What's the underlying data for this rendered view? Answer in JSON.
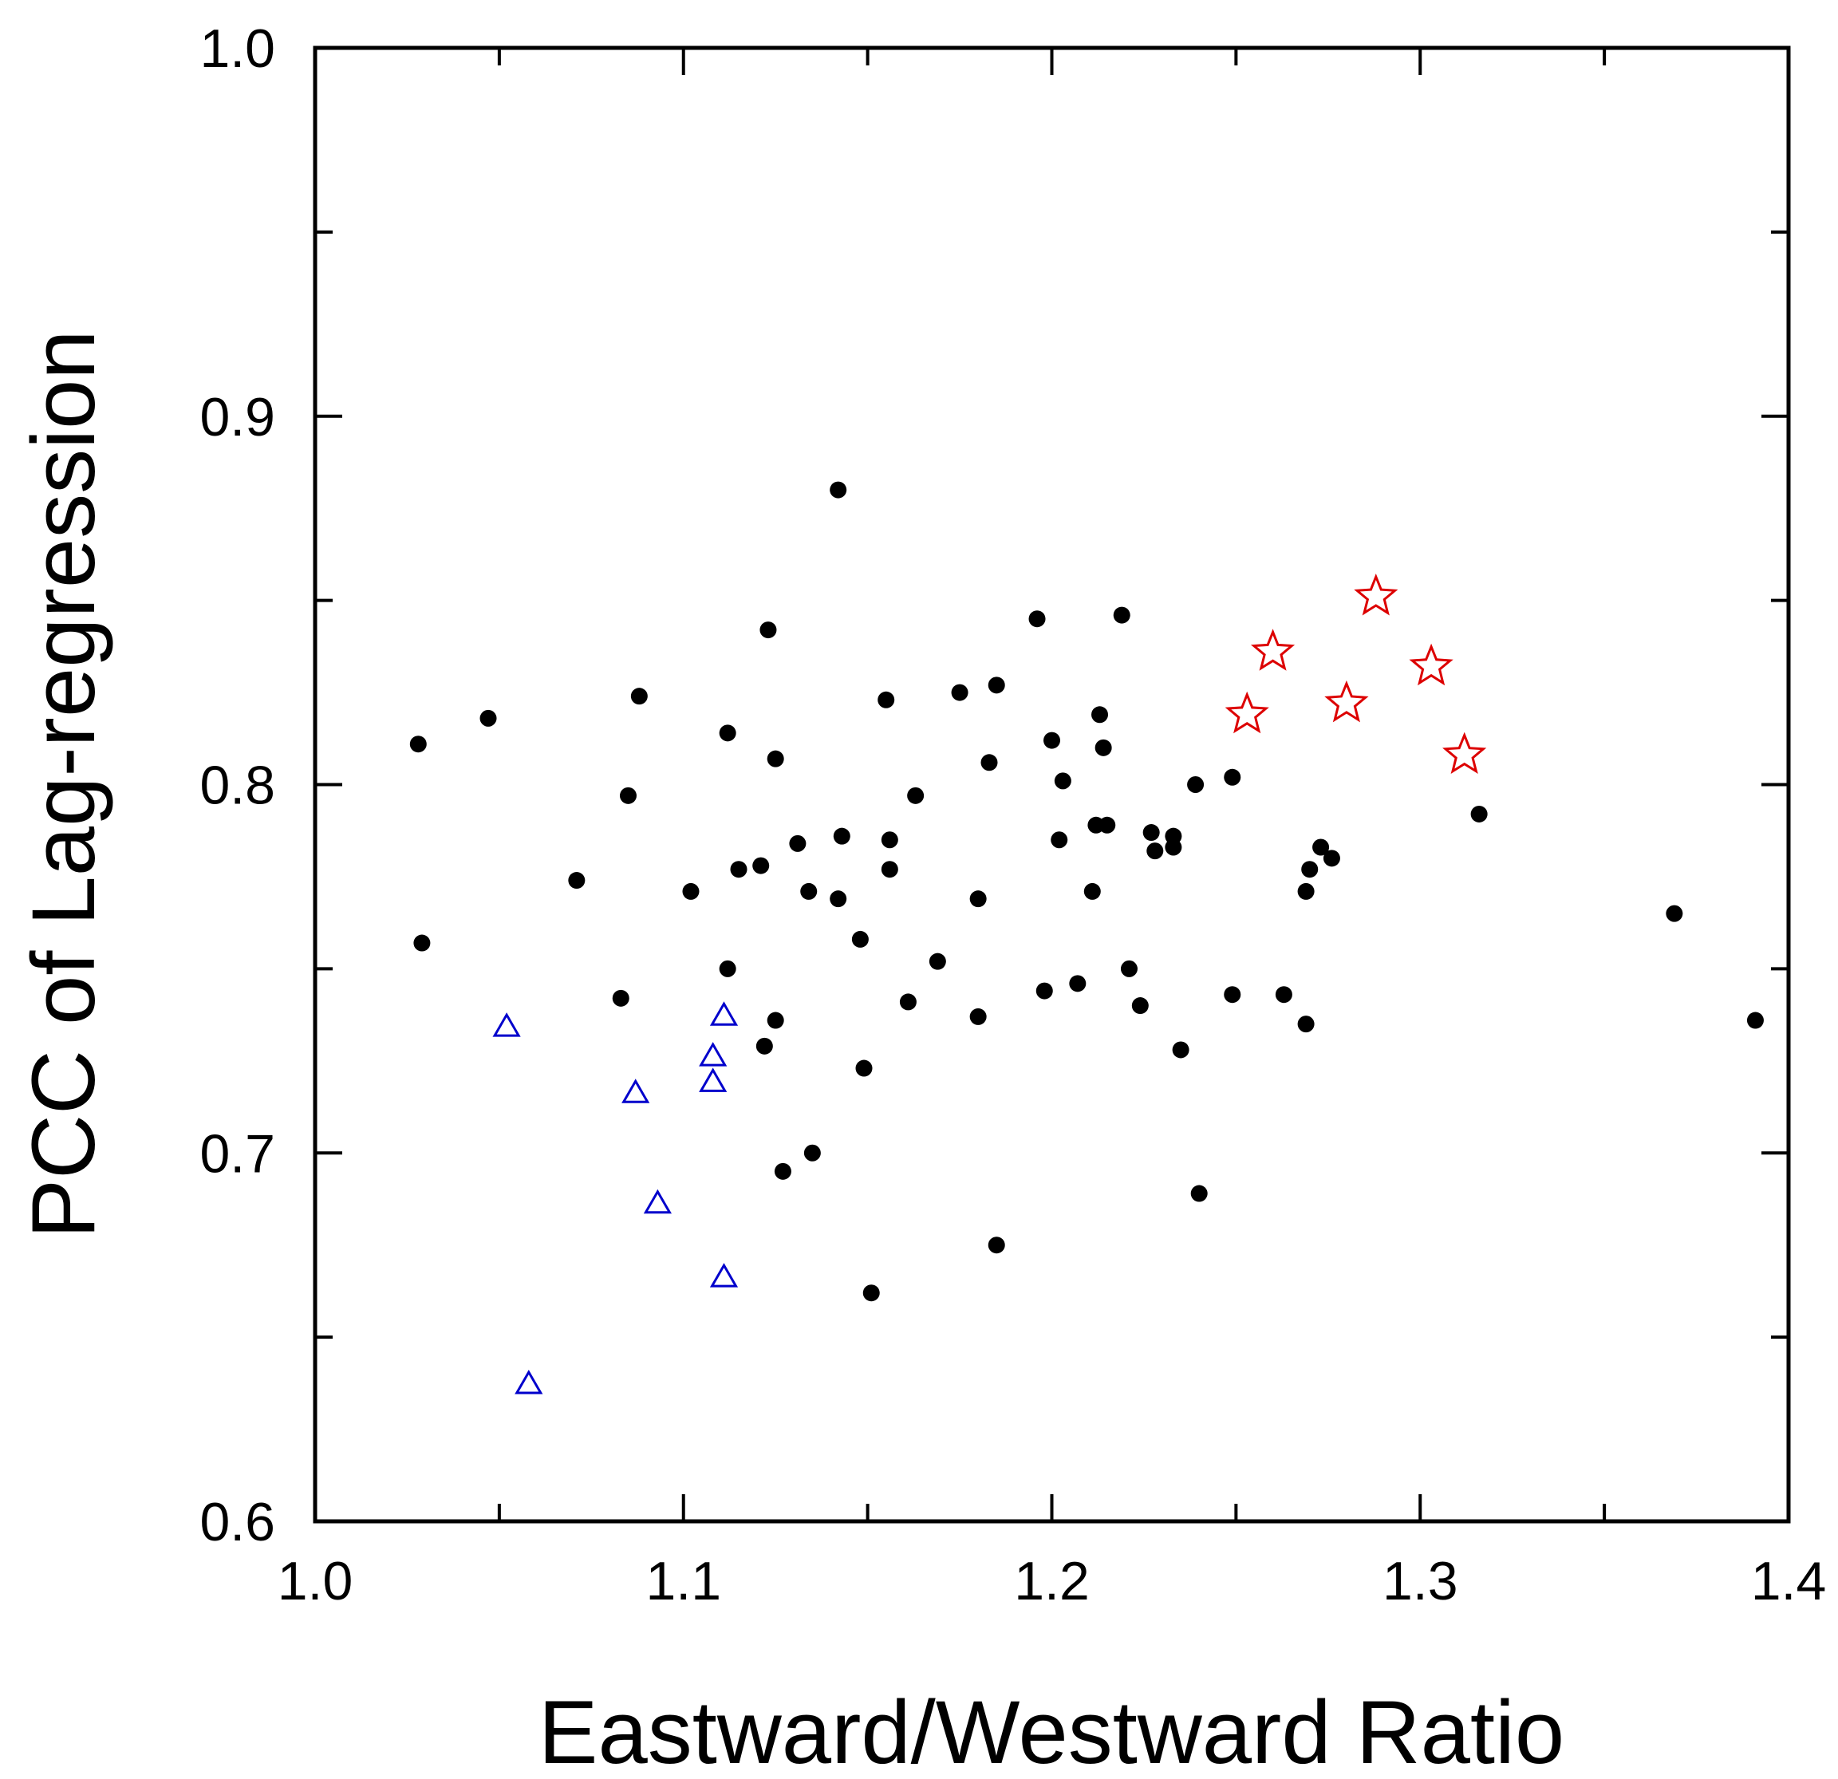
{
  "chart_data": {
    "type": "scatter",
    "title": "",
    "xlabel": "Eastward/Westward Ratio",
    "ylabel": "PCC of Lag-regression",
    "xlim": [
      1.0,
      1.4
    ],
    "ylim": [
      0.6,
      1.0
    ],
    "x_ticks": [
      1.0,
      1.05,
      1.1,
      1.15,
      1.2,
      1.25,
      1.3,
      1.35,
      1.4
    ],
    "x_tick_labels": [
      "1.0",
      "",
      "1.1",
      "",
      "1.2",
      "",
      "1.3",
      "",
      "1.4"
    ],
    "y_ticks": [
      0.6,
      0.65,
      0.7,
      0.75,
      0.8,
      0.85,
      0.9,
      0.95,
      1.0
    ],
    "y_tick_labels": [
      "0.6",
      "",
      "0.7",
      "",
      "0.8",
      "",
      "0.9",
      "",
      "1.0"
    ],
    "grid": false,
    "series": [
      {
        "marker": "dot",
        "color": "#000000",
        "points": [
          [
            1.028,
            0.811
          ],
          [
            1.029,
            0.757
          ],
          [
            1.047,
            0.818
          ],
          [
            1.071,
            0.774
          ],
          [
            1.083,
            0.742
          ],
          [
            1.085,
            0.797
          ],
          [
            1.088,
            0.824
          ],
          [
            1.102,
            0.771
          ],
          [
            1.112,
            0.814
          ],
          [
            1.112,
            0.75
          ],
          [
            1.115,
            0.777
          ],
          [
            1.121,
            0.778
          ],
          [
            1.122,
            0.729
          ],
          [
            1.123,
            0.842
          ],
          [
            1.125,
            0.807
          ],
          [
            1.125,
            0.736
          ],
          [
            1.127,
            0.695
          ],
          [
            1.131,
            0.784
          ],
          [
            1.134,
            0.771
          ],
          [
            1.135,
            0.7
          ],
          [
            1.142,
            0.88
          ],
          [
            1.142,
            0.769
          ],
          [
            1.143,
            0.786
          ],
          [
            1.148,
            0.758
          ],
          [
            1.149,
            0.723
          ],
          [
            1.151,
            0.662
          ],
          [
            1.155,
            0.823
          ],
          [
            1.156,
            0.785
          ],
          [
            1.156,
            0.777
          ],
          [
            1.161,
            0.741
          ],
          [
            1.163,
            0.797
          ],
          [
            1.169,
            0.752
          ],
          [
            1.175,
            0.825
          ],
          [
            1.18,
            0.769
          ],
          [
            1.18,
            0.737
          ],
          [
            1.183,
            0.806
          ],
          [
            1.185,
            0.827
          ],
          [
            1.185,
            0.675
          ],
          [
            1.196,
            0.845
          ],
          [
            1.198,
            0.744
          ],
          [
            1.2,
            0.812
          ],
          [
            1.202,
            0.785
          ],
          [
            1.203,
            0.801
          ],
          [
            1.207,
            0.746
          ],
          [
            1.211,
            0.771
          ],
          [
            1.212,
            0.789
          ],
          [
            1.213,
            0.819
          ],
          [
            1.214,
            0.81
          ],
          [
            1.215,
            0.789
          ],
          [
            1.219,
            0.846
          ],
          [
            1.221,
            0.75
          ],
          [
            1.224,
            0.74
          ],
          [
            1.227,
            0.787
          ],
          [
            1.228,
            0.782
          ],
          [
            1.233,
            0.786
          ],
          [
            1.233,
            0.783
          ],
          [
            1.235,
            0.728
          ],
          [
            1.239,
            0.8
          ],
          [
            1.24,
            0.689
          ],
          [
            1.249,
            0.802
          ],
          [
            1.249,
            0.743
          ],
          [
            1.263,
            0.743
          ],
          [
            1.269,
            0.771
          ],
          [
            1.269,
            0.735
          ],
          [
            1.27,
            0.777
          ],
          [
            1.273,
            0.783
          ],
          [
            1.276,
            0.78
          ],
          [
            1.316,
            0.792
          ],
          [
            1.369,
            0.765
          ],
          [
            1.391,
            0.736
          ]
        ]
      },
      {
        "marker": "triangle",
        "color": "#0000cc",
        "points": [
          [
            1.052,
            0.734
          ],
          [
            1.058,
            0.637
          ],
          [
            1.087,
            0.716
          ],
          [
            1.093,
            0.686
          ],
          [
            1.108,
            0.726
          ],
          [
            1.108,
            0.719
          ],
          [
            1.111,
            0.737
          ],
          [
            1.111,
            0.666
          ]
        ]
      },
      {
        "marker": "star",
        "color": "#dd0000",
        "points": [
          [
            1.253,
            0.819
          ],
          [
            1.26,
            0.836
          ],
          [
            1.28,
            0.822
          ],
          [
            1.288,
            0.851
          ],
          [
            1.303,
            0.832
          ],
          [
            1.312,
            0.808
          ]
        ]
      }
    ]
  }
}
